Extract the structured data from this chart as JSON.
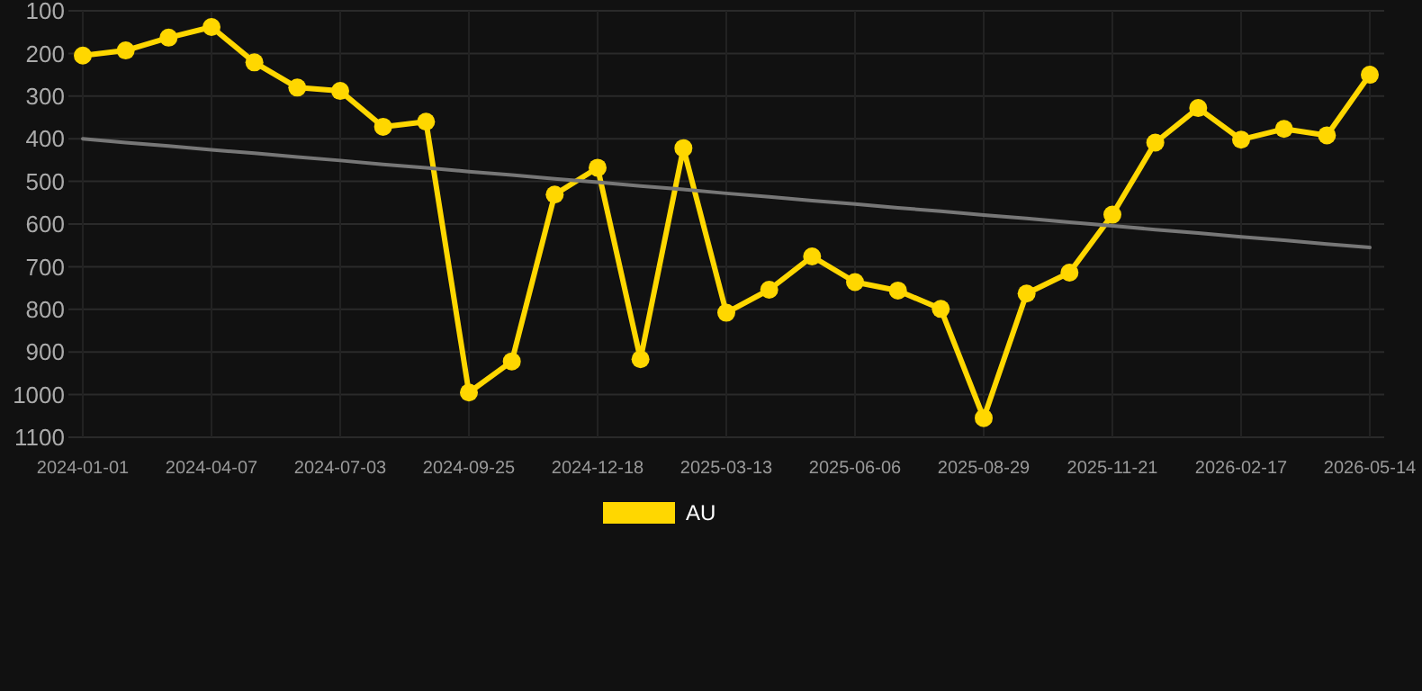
{
  "chart_data": {
    "type": "line",
    "categories": [
      "2024-01-01",
      null,
      null,
      "2024-04-07",
      null,
      null,
      "2024-07-03",
      null,
      null,
      "2024-09-25",
      null,
      null,
      "2024-12-18",
      null,
      null,
      "2025-03-13",
      null,
      null,
      "2025-06-06",
      null,
      null,
      "2025-08-29",
      null,
      null,
      "2025-11-21",
      null,
      null,
      "2026-02-17",
      null,
      null,
      "2026-05-14"
    ],
    "series": [
      {
        "name": "AU",
        "color": "#ffd700",
        "marker": "circle",
        "values": [
          205,
          193,
          163,
          138,
          221,
          280,
          288,
          372,
          360,
          995,
          922,
          531,
          468,
          917,
          422,
          808,
          754,
          676,
          736,
          756,
          799,
          1055,
          763,
          714,
          578,
          409,
          328,
          402,
          377,
          392,
          250
        ]
      },
      {
        "type": "line",
        "color": "#777777",
        "marker": "none",
        "values": [
          400,
          409,
          417,
          426,
          434,
          443,
          451,
          460,
          468,
          477,
          485,
          494,
          502,
          511,
          519,
          528,
          536,
          545,
          553,
          562,
          570,
          579,
          587,
          596,
          604,
          613,
          621,
          630,
          638,
          647,
          655
        ]
      }
    ],
    "ylim": [
      1100,
      100
    ],
    "yticks": [
      100,
      200,
      300,
      400,
      500,
      600,
      700,
      800,
      900,
      1000,
      1100
    ],
    "grid": true,
    "legend": "bottom"
  }
}
